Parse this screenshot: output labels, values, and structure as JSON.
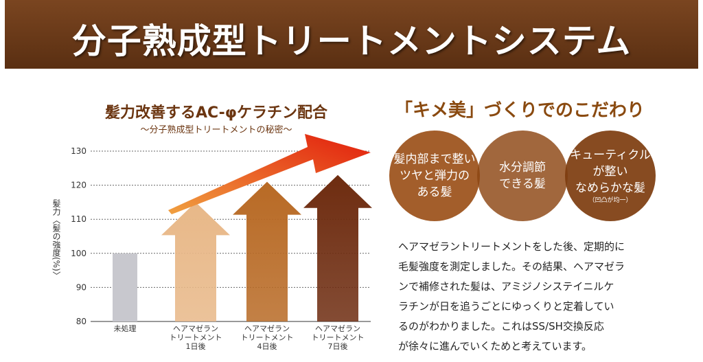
{
  "banner": {
    "title": "分子熟成型トリートメントシステム"
  },
  "chart_data": {
    "type": "bar",
    "title": "髪力改善するAC-φケラチン配合",
    "subtitle": "～分子熟成型トリートメントの秘密～",
    "ylabel": "髪力〈髪の強度(%)〉",
    "ylim": [
      80,
      130
    ],
    "yticks": [
      "80",
      "90",
      "100",
      "110",
      "120",
      "130"
    ],
    "categories": [
      [
        "未処理"
      ],
      [
        "ヘアマゼラン",
        "トリートメント",
        "1日後"
      ],
      [
        "ヘアマゼラン",
        "トリートメント",
        "4日後"
      ],
      [
        "ヘアマゼラン",
        "トリートメント",
        "7日後"
      ]
    ],
    "values": [
      100,
      115,
      121,
      123
    ],
    "bar_colors": [
      "#c8c8ce",
      "#e8b888",
      "#b86a25",
      "#6e2c10"
    ],
    "grid": true
  },
  "right": {
    "title": "「キメ美」づくりでのこだわり",
    "circles": [
      {
        "lines": [
          "髪内部まで整い",
          "ツヤと弾力の",
          "ある髪"
        ],
        "note": ""
      },
      {
        "lines": [
          "水分調節",
          "できる髪"
        ],
        "note": ""
      },
      {
        "lines": [
          "キューティクル",
          "が整い",
          "なめらかな髪"
        ],
        "note": "（凹凸が均一）"
      }
    ],
    "body": [
      "ヘアマゼラントリートメントをした後、定期的に",
      "毛髪強度を測定しました。その結果、ヘアマゼラ",
      "ンで補修された髪は、アミジノシステイニルケ",
      "ラチンが日を追うごとにゆっくりと定着してい",
      "るのがわかりました。これはSS/SH交換反応",
      "が徐々に進んでいくためと考えています。"
    ]
  }
}
